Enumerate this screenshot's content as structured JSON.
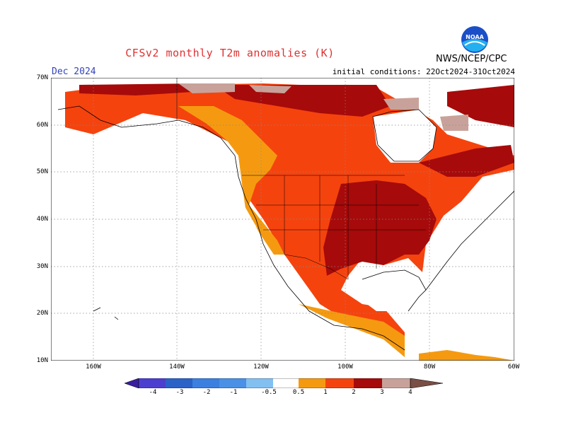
{
  "header": {
    "title": "CFSv2 monthly T2m anomalies (K)",
    "month": "Dec 2024",
    "initial_conditions": "initial conditions: 22Oct2024-31Oct2024",
    "agency": "NWS/NCEP/CPC",
    "logo_text": "NOAA"
  },
  "axes": {
    "lat_labels": [
      "70N",
      "60N",
      "50N",
      "40N",
      "30N",
      "20N",
      "10N"
    ],
    "lon_labels": [
      "160W",
      "140W",
      "120W",
      "100W",
      "80W",
      "60W"
    ]
  },
  "colorbar": {
    "labels": [
      "-4",
      "-3",
      "-2",
      "-1",
      "-0.5",
      "0.5",
      "1",
      "2",
      "3",
      "4"
    ],
    "colors": [
      "#3a1e9e",
      "#4c3fd0",
      "#2a62c8",
      "#4a90e6",
      "#82c0f2",
      "#ffffff",
      "#f59a10",
      "#f5430e",
      "#a60a0a",
      "#c8a29a",
      "#7a4f45"
    ]
  }
}
